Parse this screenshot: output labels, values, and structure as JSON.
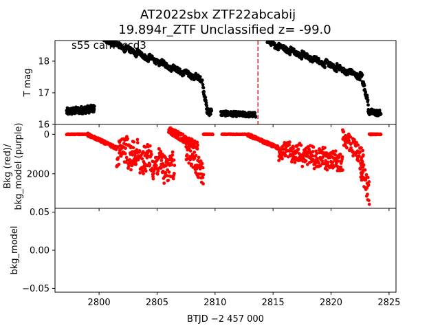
{
  "title": {
    "line1": "AT2022sbx  ZTF22abcabij",
    "line2": "19.894r_ZTF Unclassified z= -99.0"
  },
  "colors": {
    "lightcurve": "#000000",
    "bkg": "#ff0000",
    "marker_line": "#d62728",
    "axes": "#000000"
  },
  "chart_data": [
    {
      "type": "scatter",
      "panel": "top",
      "annotation": "s55 cam4ccd3",
      "ylabel": "T mag",
      "yinvert": true,
      "xlim": [
        2796.2,
        2825.6
      ],
      "ylim": [
        18.65,
        16.0
      ],
      "yticks": [
        16,
        17,
        18
      ],
      "vline_x": 2813.7,
      "series": [
        {
          "color": "#000000",
          "segments": [
            {
              "x_start": 2797.2,
              "x_end": 2799.6,
              "y_start": 16.4,
              "y_end": 16.5,
              "noise": 0.12
            },
            {
              "x_start": 2800.3,
              "x_end": 2808.9,
              "y_start": 18.7,
              "y_end": 17.4,
              "noise": 0.08,
              "wiggle": 0.12
            },
            {
              "x_start": 2808.95,
              "x_end": 2809.3,
              "y_start": 17.2,
              "y_end": 16.5,
              "noise": 0.1
            },
            {
              "x_start": 2809.3,
              "x_end": 2809.7,
              "y_start": 16.4,
              "y_end": 16.4,
              "noise": 0.12
            },
            {
              "x_start": 2810.5,
              "x_end": 2813.5,
              "y_start": 16.35,
              "y_end": 16.3,
              "noise": 0.08
            },
            {
              "x_start": 2814.5,
              "x_end": 2822.7,
              "y_start": 18.6,
              "y_end": 17.5,
              "noise": 0.08,
              "wiggle": 0.12
            },
            {
              "x_start": 2822.7,
              "x_end": 2823.2,
              "y_start": 17.4,
              "y_end": 16.7,
              "noise": 0.1
            },
            {
              "x_start": 2823.2,
              "x_end": 2824.3,
              "y_start": 16.4,
              "y_end": 16.35,
              "noise": 0.1
            }
          ]
        }
      ]
    },
    {
      "type": "scatter",
      "panel": "middle",
      "ylabel_lines": [
        "Bkg (red)/",
        "bkg_model (purple)"
      ],
      "xlim": [
        2796.2,
        2825.6
      ],
      "ylim": [
        -500,
        3750
      ],
      "yticks": [
        0,
        2000
      ],
      "series": [
        {
          "color": "#ff0000",
          "segments": [
            {
              "x_start": 2797.2,
              "x_end": 2799.0,
              "y_start": 0,
              "y_end": 0,
              "noise": 15
            },
            {
              "x_start": 2799.0,
              "x_end": 2801.5,
              "y_start": 10,
              "y_end": 700,
              "noise": 80
            },
            {
              "x_start": 2801.5,
              "x_end": 2806.5,
              "y_start": 700,
              "y_end": 1800,
              "noise": 700,
              "wiggle": 500
            },
            {
              "x_start": 2806.0,
              "x_end": 2808.5,
              "y_start": -200,
              "y_end": 600,
              "noise": 200
            },
            {
              "x_start": 2807.5,
              "x_end": 2809.0,
              "y_start": 700,
              "y_end": 2000,
              "noise": 600
            },
            {
              "x_start": 2809.0,
              "x_end": 2809.8,
              "y_start": 0,
              "y_end": 0,
              "noise": 15
            },
            {
              "x_start": 2810.6,
              "x_end": 2812.8,
              "y_start": 0,
              "y_end": 0,
              "noise": 15
            },
            {
              "x_start": 2812.8,
              "x_end": 2815.5,
              "y_start": 20,
              "y_end": 700,
              "noise": 80
            },
            {
              "x_start": 2815.5,
              "x_end": 2821.0,
              "y_start": 800,
              "y_end": 1400,
              "noise": 450,
              "wiggle": 350
            },
            {
              "x_start": 2821.0,
              "x_end": 2822.8,
              "y_start": 100,
              "y_end": 1200,
              "noise": 450
            },
            {
              "x_start": 2822.5,
              "x_end": 2823.3,
              "y_start": 1500,
              "y_end": 3000,
              "noise": 600
            },
            {
              "x_start": 2823.3,
              "x_end": 2824.3,
              "y_start": 0,
              "y_end": 0,
              "noise": 20
            }
          ]
        }
      ]
    },
    {
      "type": "scatter",
      "panel": "bottom",
      "ylabel_lines": [
        "bkg_model"
      ],
      "xlim": [
        2796.2,
        2825.6
      ],
      "ylim": [
        0.055,
        -0.055
      ],
      "yticks": [
        -0.05,
        0.0,
        0.05
      ],
      "yticklabels": [
        "−0.05",
        "0.00",
        "0.05"
      ],
      "xticks": [
        2800,
        2805,
        2810,
        2815,
        2820,
        2825
      ],
      "xlabel": "BTJD −2 457 000",
      "series": []
    }
  ]
}
